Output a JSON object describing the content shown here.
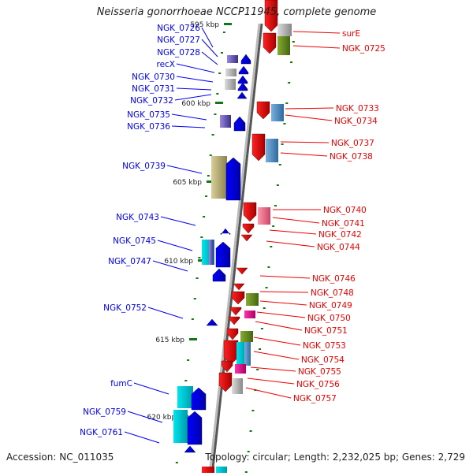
{
  "title": "Neisseria gonorrhoeae NCCP11945, complete genome",
  "accession": "Accession: NC_011035",
  "topology": "Topology: circular; Length: 2,232,025 bp; Genes: 2,729",
  "colors": {
    "forward": "#0000ee",
    "reverse": "#ee0000",
    "backbone": "#888888",
    "tick": "#117711"
  },
  "scale_ticks": [
    "595 kbp",
    "600 kbp",
    "605 kbp",
    "610 kbp",
    "615 kbp",
    "620 kbp"
  ],
  "left_genes": [
    "NGK_0726",
    "NGK_0727",
    "NGK_0728",
    "recX",
    "NGK_0730",
    "NGK_0731",
    "NGK_0732",
    "NGK_0735",
    "NGK_0736",
    "NGK_0739",
    "NGK_0743",
    "NGK_0745",
    "NGK_0747",
    "NGK_0752",
    "fumC",
    "NGK_0759",
    "NGK_0761"
  ],
  "right_genes": [
    "surE",
    "NGK_0725",
    "NGK_0733",
    "NGK_0734",
    "NGK_0737",
    "NGK_0738",
    "NGK_0740",
    "NGK_0741",
    "NGK_0742",
    "NGK_0744",
    "NGK_0746",
    "NGK_0748",
    "NGK_0749",
    "NGK_0750",
    "NGK_0751",
    "NGK_0753",
    "NGK_0754",
    "NGK_0755",
    "NGK_0756",
    "NGK_0757"
  ]
}
